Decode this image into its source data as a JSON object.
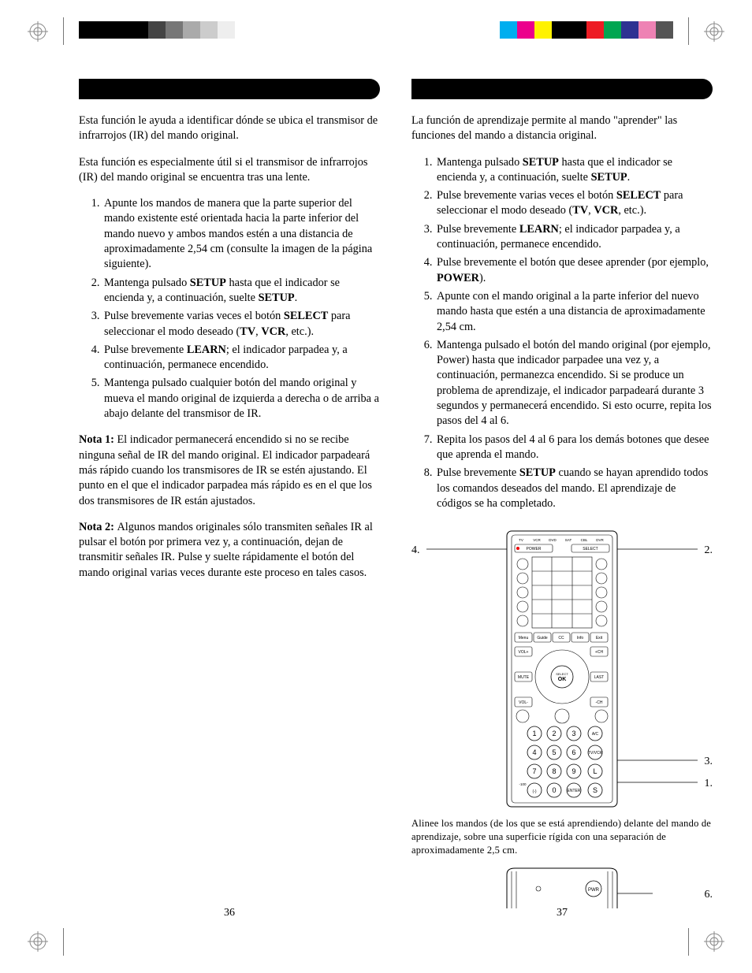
{
  "crop_colors_left": [
    "#000000",
    "#000000",
    "#000000",
    "#000000",
    "#444444",
    "#777777",
    "#aaaaaa",
    "#cccccc",
    "#eeeeee"
  ],
  "crop_colors_right": [
    "#00aeef",
    "#ec008c",
    "#fff200",
    "#000000",
    "#000000",
    "#ed1c24",
    "#00a651",
    "#2e3192",
    "#ee82b4",
    "#555555"
  ],
  "left": {
    "p1": "Esta función le ayuda a identificar dónde se ubica el transmisor de infrarrojos (IR) del mando original.",
    "p2": "Esta función es especialmente útil si el transmisor de infrarrojos (IR) del mando original se encuentra tras una lente.",
    "li1_a": "Apunte los mandos de manera que la parte superior del mando existente esté orientada hacia la parte inferior del mando nuevo y ambos mandos estén a una distancia de aproximadamente 2,54 cm (consulte la imagen de la página siguiente).",
    "li2_a": "Mantenga pulsado ",
    "li2_b": "SETUP",
    "li2_c": " hasta que el indicador se encienda y, a continuación, suelte ",
    "li2_d": "SETUP",
    "li2_e": ".",
    "li3_a": "Pulse brevemente varias veces el botón ",
    "li3_b": "SELECT",
    "li3_c": " para seleccionar el modo deseado (",
    "li3_d": "TV",
    "li3_e": ", ",
    "li3_f": "VCR",
    "li3_g": ", etc.).",
    "li4_a": "Pulse brevemente ",
    "li4_b": "LEARN",
    "li4_c": "; el indicador parpadea y, a continuación, permanece encendido.",
    "li5_a": "Mantenga pulsado cualquier botón del mando original y mueva el mando original de izquierda a derecha o de arriba a abajo delante del transmisor de IR.",
    "n1_a": "Nota 1: ",
    "n1_b": "El indicador permanecerá encendido si no se recibe ninguna señal de IR del mando original. El indicador parpadeará más rápido cuando los transmisores de IR se estén ajustando. El punto en el que el indicador parpadea más rápido es en el que los dos transmisores de IR están ajustados.",
    "n2_a": "Nota 2: ",
    "n2_b": "Algunos mandos originales sólo transmiten señales IR al pulsar el botón por primera vez y, a continuación, dejan de transmitir señales IR. Pulse y suelte rápidamente el botón del mando original varias veces durante este proceso en tales casos.",
    "page": "36"
  },
  "right": {
    "p1": "La función de aprendizaje permite al mando \"aprender\" las funciones del mando a distancia original.",
    "li1_a": "Mantenga pulsado ",
    "li1_b": "SETUP",
    "li1_c": " hasta que el indicador se encienda y, a continuación, suelte ",
    "li1_d": "SETUP",
    "li1_e": ".",
    "li2_a": "Pulse brevemente varias veces el botón ",
    "li2_b": "SELECT",
    "li2_c": " para seleccionar el modo deseado (",
    "li2_d": "TV",
    "li2_e": ", ",
    "li2_f": "VCR",
    "li2_g": ", etc.).",
    "li3_a": "Pulse brevemente ",
    "li3_b": "LEARN",
    "li3_c": "; el indicador parpadea y, a continuación, permanece encendido.",
    "li4_a": "Pulse brevemente el botón que desee aprender (por ejemplo, ",
    "li4_b": "POWER",
    "li4_c": ").",
    "li5_a": "Apunte con el mando original a la parte inferior del nuevo mando hasta que estén a una distancia de aproximadamente 2,54 cm.",
    "li6_a": "Mantenga pulsado el botón del mando original (por ejemplo, Power) hasta que indicador parpadee una vez y, a continuación, permanezca encendido. Si se produce un problema de aprendizaje, el indicador parpadeará durante 3 segundos y permanecerá encendido. Si esto ocurre, repita los pasos del 4 al 6.",
    "li7_a": "Repita los pasos del 4 al 6 para los demás botones que desee que aprenda el mando.",
    "li8_a": "Pulse brevemente ",
    "li8_b": "SETUP",
    "li8_c": " cuando se hayan aprendido todos los comandos deseados del mando. El aprendizaje de códigos se ha completado.",
    "caption": "Alinee los mandos (de los que se está aprendiendo) delante del mando de aprendizaje, sobre una superficie rígida con una separación de aproximadamente 2,5 cm.",
    "page": "37",
    "callouts": {
      "c4": "4.",
      "c2": "2.",
      "c3": "3.",
      "c1": "1.",
      "c6": "6."
    },
    "remote": {
      "modes": [
        "TV",
        "VCR",
        "DVD",
        "SAT",
        "CBL",
        "DVR"
      ],
      "power": "POWER",
      "select": "SELECT",
      "row_labels": [
        "Menu",
        "Guide",
        "CC",
        "Info",
        "Exit"
      ],
      "vol_plus": "VOL+",
      "vol_minus": "VOL-",
      "ch_plus": "+CH",
      "ch_minus": "-CH",
      "mute": "MUTE",
      "last": "LAST",
      "ok": "OK",
      "select2": "SELECT",
      "numpad": [
        "1",
        "2",
        "3",
        "4",
        "5",
        "6",
        "7",
        "8",
        "9",
        "0"
      ],
      "side": [
        "A/C",
        "TV/VCR",
        "L",
        "S"
      ],
      "dash": "(-)",
      "enter": "ENTER",
      "minus100": "-100",
      "pwr": "PWR"
    }
  }
}
